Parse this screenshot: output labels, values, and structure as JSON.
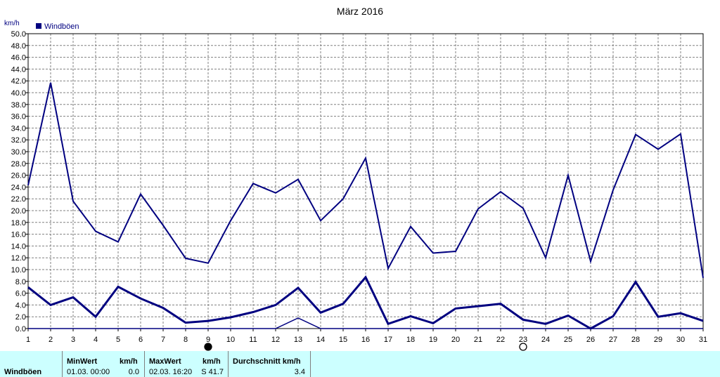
{
  "chart_data": {
    "type": "line",
    "title": "März 2016",
    "ylabel": "km/h",
    "legend": {
      "entries": [
        "Windböen"
      ],
      "placement": "top-left"
    },
    "ylim": [
      0,
      50
    ],
    "ytick_step": 2,
    "categories": [
      "1",
      "2",
      "3",
      "4",
      "5",
      "6",
      "7",
      "8",
      "9",
      "10",
      "11",
      "12",
      "13",
      "14",
      "15",
      "16",
      "17",
      "18",
      "19",
      "20",
      "21",
      "22",
      "23",
      "24",
      "25",
      "26",
      "27",
      "28",
      "29",
      "30",
      "31"
    ],
    "series": [
      {
        "name": "Windböen",
        "role": "max",
        "values": [
          24.3,
          41.7,
          21.6,
          16.5,
          14.7,
          22.8,
          17.5,
          11.9,
          11.1,
          18.3,
          24.6,
          23.0,
          25.3,
          18.3,
          22.0,
          28.9,
          10.2,
          17.3,
          12.8,
          13.1,
          20.3,
          23.2,
          20.4,
          12.0,
          26.0,
          11.4,
          23.5,
          32.9,
          30.4,
          33.0,
          8.6
        ],
        "stroke_width": 2
      },
      {
        "name": "Windböen",
        "role": "avg",
        "values": [
          7.0,
          4.0,
          5.3,
          2.0,
          7.1,
          5.1,
          3.5,
          1.0,
          1.3,
          1.9,
          2.8,
          4.0,
          6.9,
          2.7,
          4.2,
          8.7,
          0.8,
          2.1,
          0.9,
          3.4,
          3.8,
          4.2,
          1.5,
          0.8,
          2.2,
          0.0,
          2.1,
          7.9,
          2.0,
          2.6,
          1.3
        ],
        "stroke_width": 3
      },
      {
        "name": "Windböen",
        "role": "min",
        "values": [
          0,
          0,
          0,
          0,
          0,
          0,
          0,
          0,
          0,
          0,
          0,
          0,
          1.8,
          0,
          0,
          0,
          0,
          0,
          0,
          0,
          0,
          0,
          0,
          0,
          0,
          0,
          0,
          0,
          0,
          0,
          0
        ],
        "stroke_width": 1.5
      }
    ],
    "moon_phases": [
      {
        "day": 9,
        "phase": "new"
      },
      {
        "day": 23,
        "phase": "full"
      }
    ],
    "grid": true
  },
  "stats": {
    "row_label": "Windböen",
    "min": {
      "header": "MinWert",
      "unit": "km/h",
      "time": "01.03.  00:00",
      "value": "0.0"
    },
    "max": {
      "header": "MaxWert",
      "unit": "km/h",
      "time": "02.03.  16:20",
      "value": "S 41.7"
    },
    "avg": {
      "header": "Durchschnitt km/h",
      "value": "3.4"
    }
  },
  "colors": {
    "line": "#000080",
    "grid": "#808080",
    "stats_bg": "#ccffff"
  }
}
